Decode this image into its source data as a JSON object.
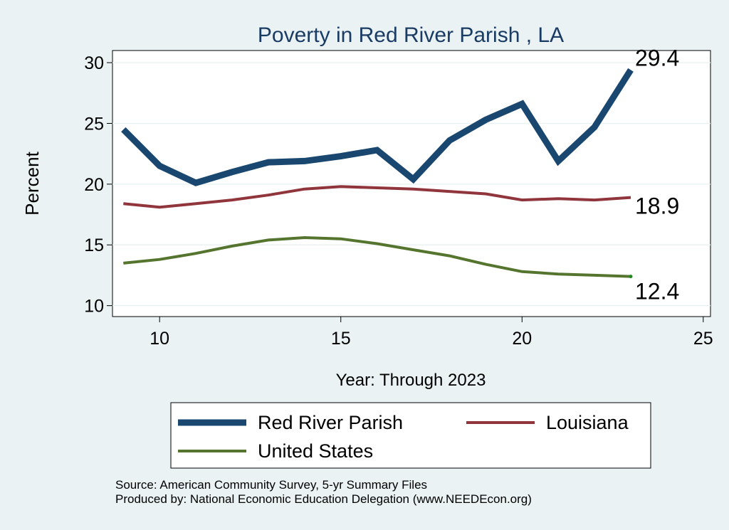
{
  "chart_data": {
    "type": "line",
    "title": "Poverty in Red River Parish , LA",
    "xlabel": "Year: Through 2023",
    "ylabel": "Percent",
    "xlim": [
      8.7,
      25.2
    ],
    "ylim": [
      9.1,
      31.0
    ],
    "xticks": [
      10,
      15,
      20,
      25
    ],
    "yticks": [
      10,
      15,
      20,
      25,
      30
    ],
    "grid": "horizontal",
    "legend_position": "bottom",
    "series": [
      {
        "name": "Red River Parish",
        "color": "#1a476f",
        "width": "thick",
        "x": [
          9,
          10,
          11,
          12,
          13,
          14,
          15,
          16,
          17,
          18,
          19,
          20,
          21,
          22,
          23
        ],
        "values": [
          24.5,
          21.5,
          20.1,
          21.0,
          21.8,
          21.9,
          22.3,
          22.8,
          20.4,
          23.6,
          25.3,
          26.6,
          21.9,
          24.7,
          29.4
        ],
        "end_label": "29.4"
      },
      {
        "name": "Louisiana",
        "color": "#90353b",
        "width": "medium",
        "x": [
          9,
          10,
          11,
          12,
          13,
          14,
          15,
          16,
          17,
          18,
          19,
          20,
          21,
          22,
          23
        ],
        "values": [
          18.4,
          18.1,
          18.4,
          18.7,
          19.1,
          19.6,
          19.8,
          19.7,
          19.6,
          19.4,
          19.2,
          18.7,
          18.8,
          18.7,
          18.9
        ],
        "end_label": "18.9"
      },
      {
        "name": "United States",
        "color": "#55752f",
        "width": "medium",
        "x": [
          9,
          10,
          11,
          12,
          13,
          14,
          15,
          16,
          17,
          18,
          19,
          20,
          21,
          22,
          23
        ],
        "values": [
          13.5,
          13.8,
          14.3,
          14.9,
          15.4,
          15.6,
          15.5,
          15.1,
          14.6,
          14.1,
          13.4,
          12.8,
          12.6,
          12.5,
          12.4
        ],
        "end_label": "12.4"
      }
    ]
  },
  "footer": {
    "source": "Source: American Community Survey, 5-yr Summary Files",
    "produced_by": "Produced by: National Economic Education Delegation (www.NEEDEcon.org)"
  }
}
